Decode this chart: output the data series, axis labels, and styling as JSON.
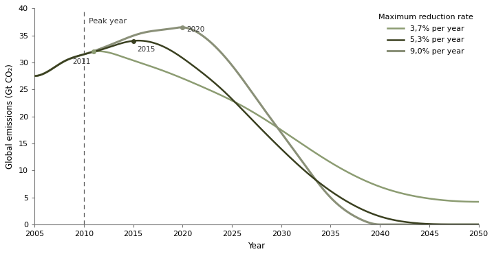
{
  "xlabel": "Year",
  "ylabel": "Global emissions (Gt CO₂)",
  "xlim": [
    2005,
    2050
  ],
  "ylim": [
    0,
    40
  ],
  "yticks": [
    0,
    5,
    10,
    15,
    20,
    25,
    30,
    35,
    40
  ],
  "xticks": [
    2005,
    2010,
    2015,
    2020,
    2025,
    2030,
    2035,
    2040,
    2045,
    2050
  ],
  "dashed_line_x": 2010,
  "color_1": "#8c9c72",
  "color_2": "#3a4020",
  "color_3": "#8a9078",
  "legend_title": "Maximum reduction rate",
  "legend_labels": [
    "3,7% per year",
    "5,3% per year",
    "9,0% per year"
  ],
  "peak_label_1": "2011",
  "peak_label_2": "2015",
  "peak_label_3": "2020",
  "peak_year_label": "Peak year",
  "background_color": "#ffffff",
  "linewidth": 1.8,
  "figsize": [
    7.18,
    3.73
  ],
  "dpi": 100,
  "curve1_x": [
    2005,
    2008,
    2010,
    2011,
    2014,
    2018,
    2022,
    2026,
    2030,
    2035,
    2040,
    2045,
    2050
  ],
  "curve1_y": [
    27.5,
    30.2,
    31.5,
    32.0,
    31.0,
    28.5,
    25.5,
    22.0,
    17.5,
    11.5,
    7.0,
    4.8,
    4.2
  ],
  "curve2_x": [
    2005,
    2008,
    2010,
    2012,
    2015,
    2018,
    2021,
    2024,
    2027,
    2030,
    2033,
    2036,
    2040,
    2044,
    2047
  ],
  "curve2_y": [
    27.5,
    30.2,
    31.5,
    32.5,
    34.0,
    33.0,
    29.5,
    25.0,
    19.5,
    14.0,
    9.0,
    5.0,
    1.5,
    0.2,
    0.0
  ],
  "curve3_x": [
    2005,
    2008,
    2010,
    2013,
    2016,
    2019,
    2020,
    2022,
    2025,
    2028,
    2030,
    2032,
    2035,
    2038,
    2040
  ],
  "curve3_y": [
    27.5,
    30.2,
    31.5,
    33.5,
    35.5,
    36.3,
    36.5,
    35.0,
    29.5,
    22.0,
    17.0,
    12.0,
    5.0,
    1.0,
    0.0
  ],
  "peak1_x": 2011,
  "peak1_y": 32.0,
  "peak2_x": 2015,
  "peak2_y": 34.0,
  "peak3_x": 2020,
  "peak3_y": 36.5
}
